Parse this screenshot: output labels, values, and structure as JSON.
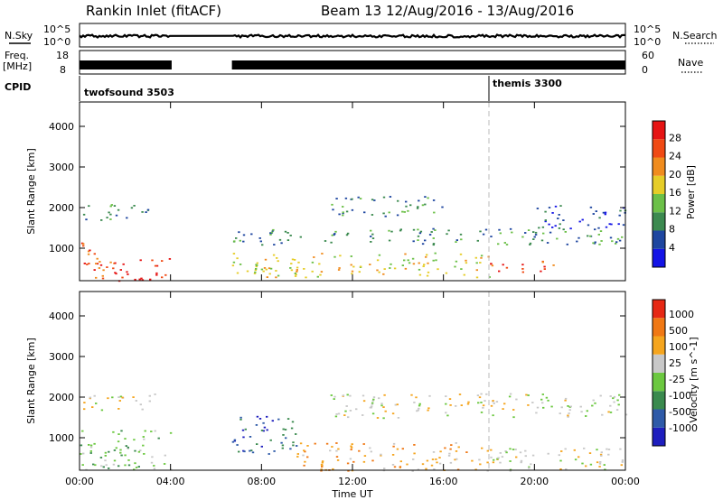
{
  "header": {
    "title": "Rankin Inlet (fitACF)",
    "beam": "Beam 13 12/Aug/2016 - 13/Aug/2016"
  },
  "noise_panel": {
    "left_label": "N.Sky",
    "right_label": "N.Search",
    "left_ticks": [
      "10^5",
      "10^0"
    ],
    "right_ticks": [
      "10^5",
      "10^0"
    ]
  },
  "freq_panel": {
    "left_label_1": "Freq.",
    "left_label_2": "[MHz]",
    "right_label": "Nave",
    "left_ticks": [
      "18",
      "8"
    ],
    "right_ticks": [
      "60",
      "0"
    ]
  },
  "cpid_panel": {
    "label": "CPID",
    "modes": [
      {
        "name": "twofsound 3503",
        "start_hour": 0
      },
      {
        "name": "themis 3300",
        "start_hour": 18
      }
    ]
  },
  "colors": {
    "power_scale": [
      "#1414e6",
      "#1e46a0",
      "#3c8a50",
      "#6cc048",
      "#e6cd28",
      "#f08c1e",
      "#f04a14",
      "#e61414"
    ],
    "velocity_scale": [
      "#1e1ebe",
      "#2e5aa8",
      "#3a8a4e",
      "#6cc840",
      "#c8c8c8",
      "#f5a51e",
      "#f07814",
      "#e62814"
    ],
    "ground_scatter": "#b4b4b4"
  },
  "chart_data": [
    {
      "type": "heatmap",
      "name": "power",
      "ylabel": "Slant Range [km]",
      "x_ticks": [
        "00:00",
        "04:00",
        "08:00",
        "12:00",
        "16:00",
        "20:00",
        "00:00"
      ],
      "y_ticks": [
        "1000",
        "2000",
        "3000",
        "4000"
      ],
      "xlim": [
        0,
        24
      ],
      "ylim": [
        200,
        4600
      ],
      "colorbar": {
        "label": "Power [dB]",
        "ticks": [
          "4",
          "8",
          "12",
          "16",
          "20",
          "24",
          "28"
        ]
      },
      "data_gap_hours": [
        4.0,
        6.7
      ],
      "scatter_regions": [
        {
          "t0": 0.0,
          "t1": 1.5,
          "r0": 200,
          "r1": 1200,
          "level": 6
        },
        {
          "t0": 1.5,
          "t1": 4.0,
          "r0": 200,
          "r1": 800,
          "level": 7
        },
        {
          "t0": 0.0,
          "t1": 3.0,
          "r0": 1700,
          "r1": 2100,
          "level": 2
        },
        {
          "t0": 6.7,
          "t1": 18.0,
          "r0": 300,
          "r1": 900,
          "level": 4
        },
        {
          "t0": 6.7,
          "t1": 24.0,
          "r0": 1100,
          "r1": 1500,
          "level": 2
        },
        {
          "t0": 11.0,
          "t1": 16.0,
          "r0": 1800,
          "r1": 2300,
          "level": 2
        },
        {
          "t0": 18.0,
          "t1": 21.0,
          "r0": 400,
          "r1": 700,
          "level": 6
        },
        {
          "t0": 20.0,
          "t1": 24.0,
          "r0": 1500,
          "r1": 2100,
          "level": 1
        }
      ]
    },
    {
      "type": "heatmap",
      "name": "velocity",
      "xlabel": "Time UT",
      "ylabel": "Slant Range [km]",
      "x_ticks": [
        "00:00",
        "04:00",
        "08:00",
        "12:00",
        "16:00",
        "20:00",
        "00:00"
      ],
      "y_ticks": [
        "1000",
        "2000",
        "3000",
        "4000"
      ],
      "xlim": [
        0,
        24
      ],
      "ylim": [
        200,
        4600
      ],
      "colorbar": {
        "label": "Velocity [m s^-1]",
        "ticks": [
          "1000",
          "500",
          "100",
          "25",
          "-25",
          "-100",
          "-500",
          "-1000"
        ]
      },
      "data_gap_hours": [
        4.0,
        6.7
      ],
      "scatter_regions": [
        {
          "t0": 0.0,
          "t1": 4.0,
          "r0": 200,
          "r1": 1200,
          "level": 3
        },
        {
          "t0": 0.0,
          "t1": 3.5,
          "r0": 1700,
          "r1": 2100,
          "level": 4
        },
        {
          "t0": 6.7,
          "t1": 9.5,
          "r0": 600,
          "r1": 1600,
          "level": 1
        },
        {
          "t0": 9.5,
          "t1": 18.0,
          "r0": 200,
          "r1": 900,
          "level": 5
        },
        {
          "t0": 11.0,
          "t1": 24.0,
          "r0": 1500,
          "r1": 2100,
          "level": 4
        },
        {
          "t0": 18.0,
          "t1": 24.0,
          "r0": 200,
          "r1": 800,
          "level": 4
        }
      ]
    }
  ]
}
